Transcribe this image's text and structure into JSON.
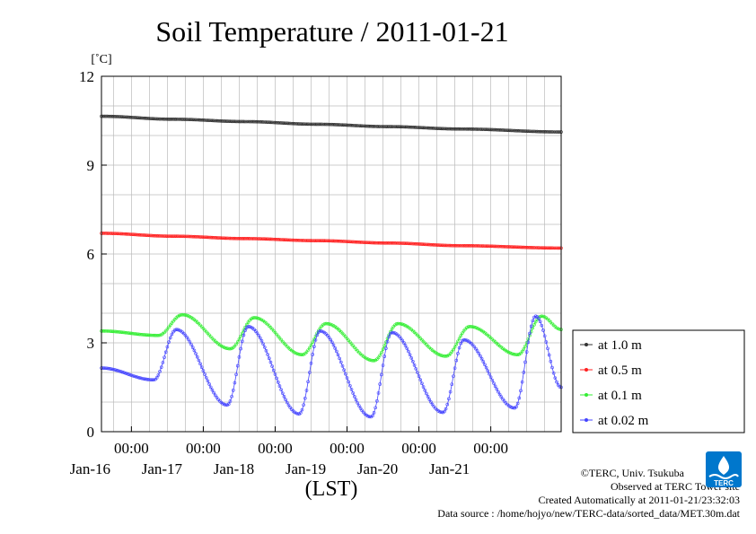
{
  "chart_data": {
    "type": "line",
    "title": "Soil Temperature / 2011-01-21",
    "ylabel": "[˚C]",
    "xlabel": "(LST)",
    "ylim": [
      0,
      12
    ],
    "yticks": [
      0,
      3,
      6,
      9,
      12
    ],
    "xlim": [
      "2011-01-15T14:00",
      "2011-01-21T23:30"
    ],
    "xticks": [
      {
        "time_label": "00:00",
        "date_label": "Jan-16",
        "t": "2011-01-16T00:00"
      },
      {
        "time_label": "00:00",
        "date_label": "Jan-17",
        "t": "2011-01-17T00:00"
      },
      {
        "time_label": "00:00",
        "date_label": "Jan-18",
        "t": "2011-01-18T00:00"
      },
      {
        "time_label": "00:00",
        "date_label": "Jan-19",
        "t": "2011-01-19T00:00"
      },
      {
        "time_label": "00:00",
        "date_label": "Jan-20",
        "t": "2011-01-20T00:00"
      },
      {
        "time_label": "00:00",
        "date_label": "Jan-21",
        "t": "2011-01-21T00:00"
      }
    ],
    "grid": true,
    "legend_position": "bottom-right",
    "series": [
      {
        "name": "at 1.0 m",
        "color": "#333333",
        "points": [
          [
            "2011-01-15T14:00",
            10.65
          ],
          [
            "2011-01-16T14:00",
            10.55
          ],
          [
            "2011-01-17T14:00",
            10.47
          ],
          [
            "2011-01-18T14:00",
            10.38
          ],
          [
            "2011-01-19T14:00",
            10.3
          ],
          [
            "2011-01-20T14:00",
            10.22
          ],
          [
            "2011-01-21T23:30",
            10.12
          ]
        ]
      },
      {
        "name": "at 0.5 m",
        "color": "#ff2020",
        "points": [
          [
            "2011-01-15T14:00",
            6.7
          ],
          [
            "2011-01-16T14:00",
            6.6
          ],
          [
            "2011-01-17T14:00",
            6.52
          ],
          [
            "2011-01-18T14:00",
            6.45
          ],
          [
            "2011-01-19T14:00",
            6.37
          ],
          [
            "2011-01-20T14:00",
            6.28
          ],
          [
            "2011-01-21T23:30",
            6.2
          ]
        ]
      },
      {
        "name": "at 0.1 m",
        "color": "#33ee33",
        "points": [
          [
            "2011-01-15T14:00",
            3.4
          ],
          [
            "2011-01-16T09:00",
            3.25
          ],
          [
            "2011-01-16T17:00",
            3.95
          ],
          [
            "2011-01-17T09:00",
            2.8
          ],
          [
            "2011-01-17T17:00",
            3.85
          ],
          [
            "2011-01-18T09:00",
            2.6
          ],
          [
            "2011-01-18T17:00",
            3.65
          ],
          [
            "2011-01-19T09:00",
            2.4
          ],
          [
            "2011-01-19T17:00",
            3.65
          ],
          [
            "2011-01-20T09:00",
            2.55
          ],
          [
            "2011-01-20T17:00",
            3.55
          ],
          [
            "2011-01-21T09:00",
            2.6
          ],
          [
            "2011-01-21T17:00",
            3.9
          ],
          [
            "2011-01-21T23:30",
            3.45
          ]
        ]
      },
      {
        "name": "at 0.02 m",
        "color": "#4444ff",
        "points": [
          [
            "2011-01-15T14:00",
            2.15
          ],
          [
            "2011-01-16T07:30",
            1.75
          ],
          [
            "2011-01-16T15:00",
            3.45
          ],
          [
            "2011-01-17T08:00",
            0.9
          ],
          [
            "2011-01-17T15:00",
            3.55
          ],
          [
            "2011-01-18T08:00",
            0.6
          ],
          [
            "2011-01-18T15:00",
            3.4
          ],
          [
            "2011-01-19T08:00",
            0.5
          ],
          [
            "2011-01-19T15:00",
            3.35
          ],
          [
            "2011-01-20T08:00",
            0.65
          ],
          [
            "2011-01-20T15:00",
            3.1
          ],
          [
            "2011-01-21T08:00",
            0.8
          ],
          [
            "2011-01-21T15:00",
            3.9
          ],
          [
            "2011-01-21T23:30",
            1.5
          ]
        ]
      }
    ]
  },
  "credits": {
    "copyright": "©TERC, Univ. Tsukuba",
    "observed": "Observed at TERC Tower site",
    "created": "Created Automatically at 2011-01-21/23:32:03",
    "source": "Data source : /home/hojyo/new/TERC-data/sorted_data/MET.30m.dat"
  },
  "logo": {
    "label": "TERC",
    "color": "#0077cc"
  }
}
